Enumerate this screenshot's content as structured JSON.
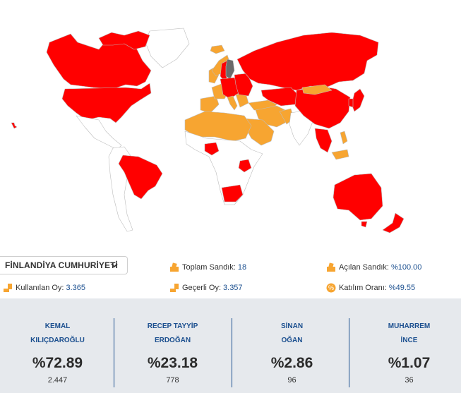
{
  "colors": {
    "winner": "#ff0000",
    "second": "#f7a531",
    "selected": "#6b6b6b",
    "no_data": "#ffffff",
    "accent": "#1b4f8f"
  },
  "selector": {
    "selected_country": "FİNLANDİYA CUMHURİYETİ",
    "icon": "chevron-down-icon"
  },
  "stats": {
    "total_boxes": {
      "label": "Toplam Sandık:",
      "value": "18",
      "icon": "ballot-box-icon"
    },
    "opened_boxes": {
      "label": "Açılan Sandık:",
      "value": "%100.00",
      "icon": "ballot-box-icon"
    },
    "votes_used": {
      "label": "Kullanılan Oy:",
      "value": "3.365",
      "icon": "ballot-icon"
    },
    "valid_votes": {
      "label": "Geçerli Oy:",
      "value": "3.357",
      "icon": "ballot-icon"
    },
    "turnout": {
      "label": "Katılım Oranı:",
      "value": "%49.55",
      "icon": "percent-icon"
    }
  },
  "candidates": [
    {
      "first": "KEMAL",
      "last": "KILIÇDAROĞLU",
      "percent": "%72.89",
      "votes": "2.447"
    },
    {
      "first": "RECEP TAYYİP",
      "last": "ERDOĞAN",
      "percent": "%23.18",
      "votes": "778"
    },
    {
      "first": "SİNAN",
      "last": "OĞAN",
      "percent": "%2.86",
      "votes": "96"
    },
    {
      "first": "MUHARREM",
      "last": "İNCE",
      "percent": "%1.07",
      "votes": "36"
    }
  ]
}
